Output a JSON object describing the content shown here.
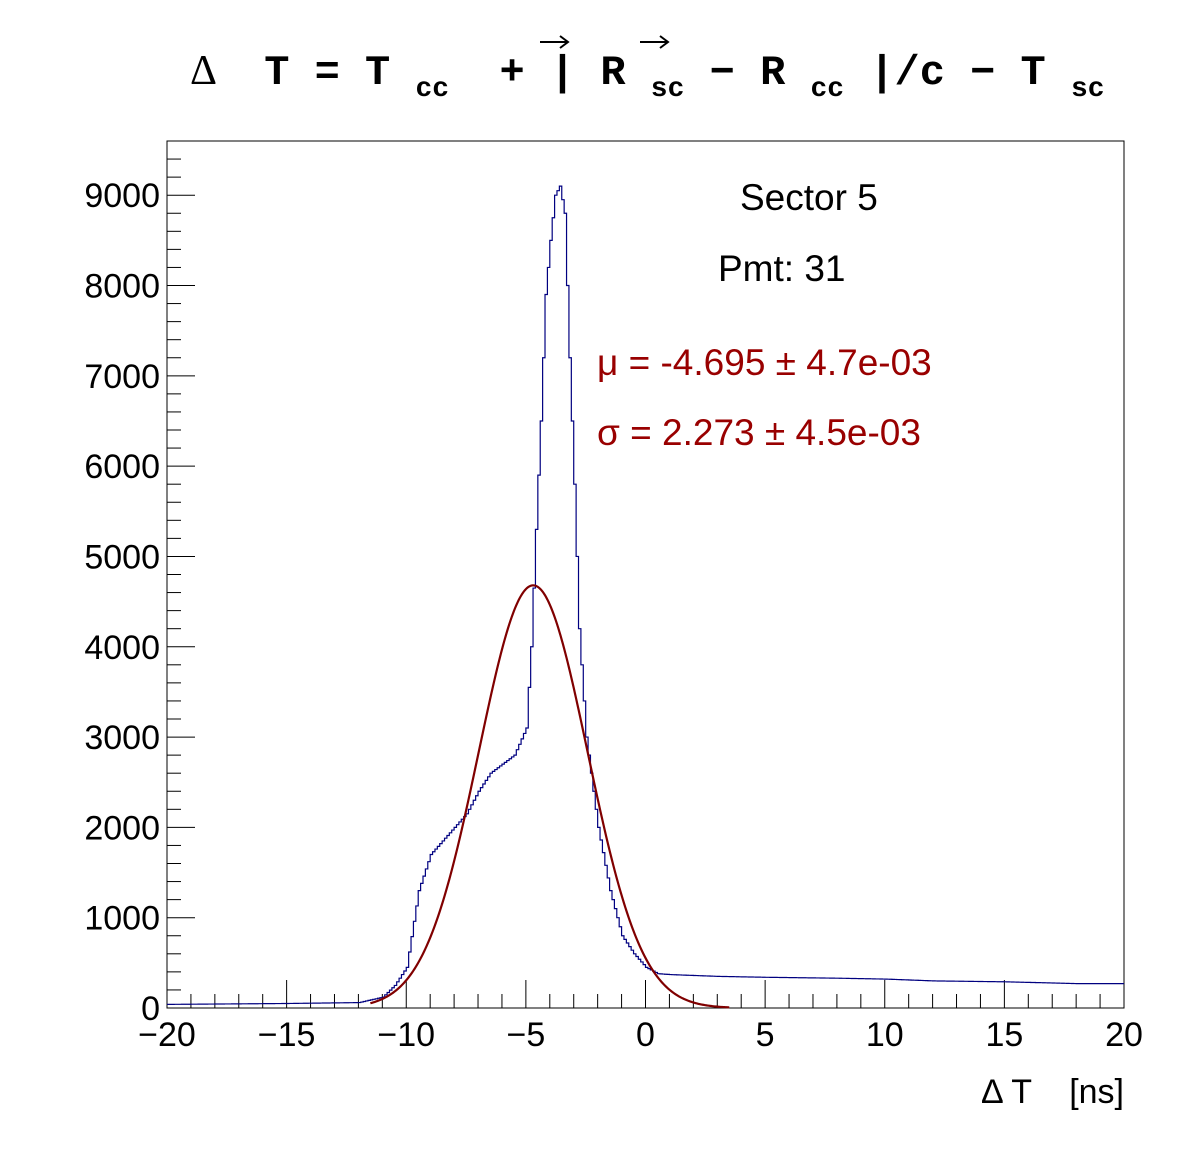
{
  "chart_data": {
    "type": "histogram",
    "title": {
      "delta": "Δ",
      "parts": [
        "T = T",
        "cc",
        " + |",
        "R",
        "sc",
        "−",
        "R",
        "cc",
        "|/c − T",
        "sc"
      ]
    },
    "xlabel": "Δ T    [ns]",
    "ylabel": "",
    "xlim": [
      -20,
      20
    ],
    "ylim": [
      0,
      9600
    ],
    "x_ticks": [
      -20,
      -15,
      -10,
      -5,
      0,
      5,
      10,
      15,
      20
    ],
    "x_tick_labels": [
      "−20",
      "−15",
      "−10",
      "−5",
      "0",
      "5",
      "10",
      "15",
      "20"
    ],
    "y_ticks": [
      0,
      1000,
      2000,
      3000,
      4000,
      5000,
      6000,
      7000,
      8000,
      9000
    ],
    "y_tick_labels": [
      "0",
      "1000",
      "2000",
      "3000",
      "4000",
      "5000",
      "6000",
      "7000",
      "8000",
      "9000"
    ],
    "grid": false,
    "legend": "none",
    "annotations": {
      "sector": "Sector 5",
      "pmt": "Pmt: 31",
      "mu": "μ = -4.695 ± 4.7e-03",
      "sigma": "σ = 2.273 ± 4.5e-03"
    },
    "series": [
      {
        "name": "histogram",
        "color": "#000080",
        "points": [
          [
            -20,
            40
          ],
          [
            -15,
            50
          ],
          [
            -12,
            60
          ],
          [
            -11,
            120
          ],
          [
            -10.5,
            250
          ],
          [
            -10,
            450
          ],
          [
            -9.5,
            1300
          ],
          [
            -9,
            1700
          ],
          [
            -8.5,
            1850
          ],
          [
            -8,
            2000
          ],
          [
            -7.5,
            2150
          ],
          [
            -7,
            2400
          ],
          [
            -6.5,
            2600
          ],
          [
            -6,
            2700
          ],
          [
            -5.5,
            2800
          ],
          [
            -5,
            3100
          ],
          [
            -4.8,
            4000
          ],
          [
            -4.6,
            5300
          ],
          [
            -4.4,
            6500
          ],
          [
            -4.2,
            7900
          ],
          [
            -4,
            8500
          ],
          [
            -3.8,
            9000
          ],
          [
            -3.6,
            9100
          ],
          [
            -3.4,
            8800
          ],
          [
            -3.2,
            7200
          ],
          [
            -3,
            5800
          ],
          [
            -2.8,
            4200
          ],
          [
            -2.5,
            3000
          ],
          [
            -2,
            2000
          ],
          [
            -1.5,
            1300
          ],
          [
            -1,
            800
          ],
          [
            -0.5,
            600
          ],
          [
            0,
            450
          ],
          [
            0.5,
            380
          ],
          [
            1,
            370
          ],
          [
            3,
            350
          ],
          [
            5,
            340
          ],
          [
            8,
            330
          ],
          [
            10,
            320
          ],
          [
            12,
            300
          ],
          [
            15,
            290
          ],
          [
            18,
            270
          ],
          [
            20,
            270
          ]
        ]
      },
      {
        "name": "fit",
        "color": "#800000",
        "amplitude": 4680,
        "mean": -4.695,
        "sigma": 2.273
      }
    ]
  }
}
